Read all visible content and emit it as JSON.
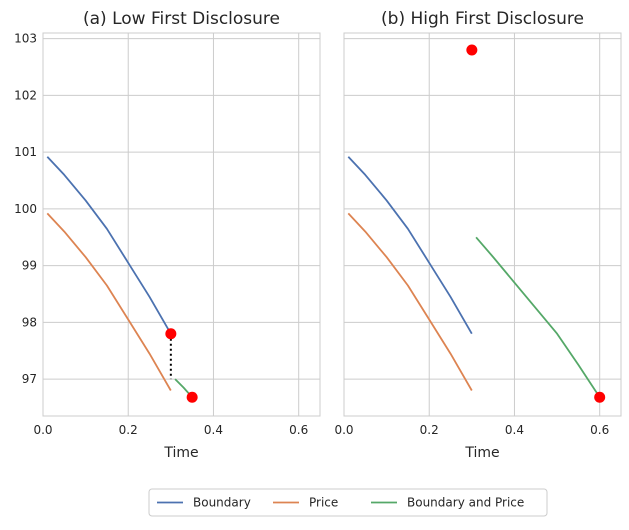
{
  "colors": {
    "boundary": "#4c72b0",
    "price": "#dd8452",
    "boundary_and_price": "#55a868",
    "marker": "#ff0000",
    "grid": "#cccccc",
    "jump": "#000000"
  },
  "legend": {
    "placement": "bottom-center",
    "entries": [
      "Boundary",
      "Price",
      "Boundary and Price"
    ]
  },
  "chart_data": [
    {
      "type": "line",
      "title": "(a) Low First Disclosure",
      "xlabel": "Time",
      "ylabel": "",
      "xlim": [
        0.0,
        0.65
      ],
      "ylim": [
        96.35,
        103.1
      ],
      "xticks": [
        "0.0",
        "0.2",
        "0.4",
        "0.6"
      ],
      "xtick_values": [
        0.0,
        0.2,
        0.4,
        0.6
      ],
      "yticks": [
        "97",
        "98",
        "99",
        "100",
        "101",
        "102",
        "103"
      ],
      "ytick_values": [
        97,
        98,
        99,
        100,
        101,
        102,
        103
      ],
      "grid": true,
      "series": [
        {
          "name": "Boundary",
          "x": [
            0.01,
            0.05,
            0.1,
            0.15,
            0.2,
            0.25,
            0.3
          ],
          "y": [
            100.92,
            100.6,
            100.15,
            99.65,
            99.05,
            98.45,
            97.8
          ]
        },
        {
          "name": "Price",
          "x": [
            0.01,
            0.05,
            0.1,
            0.15,
            0.2,
            0.25,
            0.3
          ],
          "y": [
            99.92,
            99.6,
            99.15,
            98.65,
            98.05,
            97.45,
            96.8
          ]
        },
        {
          "name": "Boundary and Price",
          "x": [
            0.31,
            0.33,
            0.35
          ],
          "y": [
            97.0,
            96.85,
            96.68
          ]
        }
      ],
      "markers": [
        {
          "x": 0.3,
          "y": 97.8
        },
        {
          "x": 0.35,
          "y": 96.68
        }
      ],
      "jump_line": {
        "x": 0.3,
        "y_from": 97.8,
        "y_to": 97.0
      }
    },
    {
      "type": "line",
      "title": "(b) High First Disclosure",
      "xlabel": "Time",
      "ylabel": "",
      "xlim": [
        0.0,
        0.65
      ],
      "ylim": [
        96.35,
        103.1
      ],
      "xticks": [
        "0.0",
        "0.2",
        "0.4",
        "0.6"
      ],
      "xtick_values": [
        0.0,
        0.2,
        0.4,
        0.6
      ],
      "grid": true,
      "series": [
        {
          "name": "Boundary",
          "x": [
            0.01,
            0.05,
            0.1,
            0.15,
            0.2,
            0.25,
            0.3
          ],
          "y": [
            100.92,
            100.6,
            100.15,
            99.65,
            99.05,
            98.45,
            97.8
          ]
        },
        {
          "name": "Price",
          "x": [
            0.01,
            0.05,
            0.1,
            0.15,
            0.2,
            0.25,
            0.3
          ],
          "y": [
            99.92,
            99.6,
            99.15,
            98.65,
            98.05,
            97.45,
            96.8
          ]
        },
        {
          "name": "Boundary and Price",
          "x": [
            0.31,
            0.35,
            0.4,
            0.45,
            0.5,
            0.55,
            0.6
          ],
          "y": [
            99.5,
            99.15,
            98.7,
            98.25,
            97.8,
            97.25,
            96.68
          ]
        }
      ],
      "markers": [
        {
          "x": 0.3,
          "y": 102.8
        },
        {
          "x": 0.6,
          "y": 96.68
        }
      ]
    }
  ]
}
